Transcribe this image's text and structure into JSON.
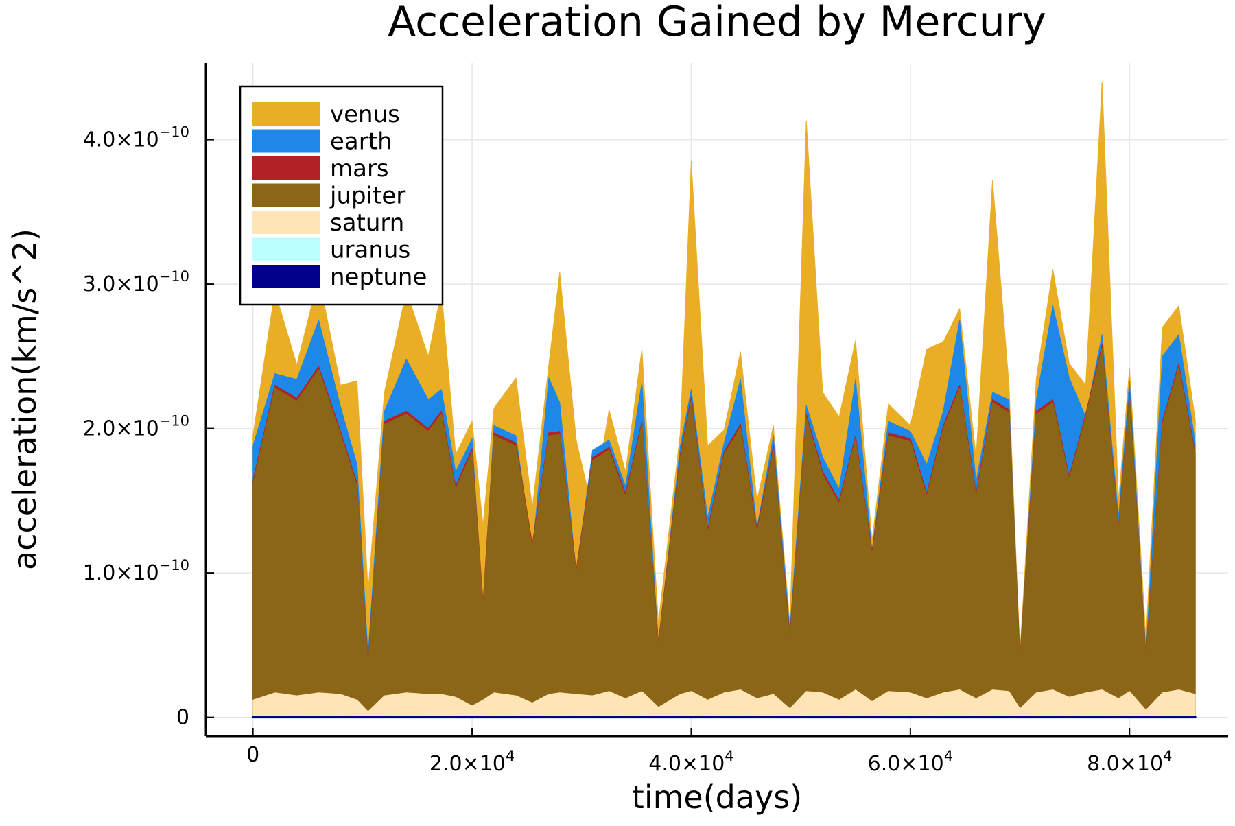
{
  "chart_data": {
    "type": "area",
    "title": "Acceleration Gained by Mercury",
    "xlabel": "time(days)",
    "ylabel": "acceleration(km/s^2)",
    "xlim": [
      -4300,
      89000
    ],
    "ylim": [
      -1.3e-11,
      4.53e-10
    ],
    "grid": true,
    "legend_position": "top-left",
    "x_ticks": [
      {
        "value": 0,
        "mantissa": "0",
        "exponent": ""
      },
      {
        "value": 20000,
        "mantissa": "2.0×10",
        "exponent": "4"
      },
      {
        "value": 40000,
        "mantissa": "4.0×10",
        "exponent": "4"
      },
      {
        "value": 60000,
        "mantissa": "6.0×10",
        "exponent": "4"
      },
      {
        "value": 80000,
        "mantissa": "8.0×10",
        "exponent": "4"
      }
    ],
    "y_ticks": [
      {
        "value": 0,
        "mantissa": "0",
        "exponent": ""
      },
      {
        "value": 1e-10,
        "mantissa": "1.0×10",
        "exponent": "−10"
      },
      {
        "value": 2e-10,
        "mantissa": "2.0×10",
        "exponent": "−10"
      },
      {
        "value": 3e-10,
        "mantissa": "3.0×10",
        "exponent": "−10"
      },
      {
        "value": 4e-10,
        "mantissa": "4.0×10",
        "exponent": "−10"
      }
    ],
    "x": [
      0,
      2000,
      4000,
      6000,
      8000,
      9500,
      10500,
      12000,
      14000,
      16000,
      17200,
      18500,
      20000,
      21000,
      22000,
      24000,
      25500,
      27000,
      28000,
      29500,
      31000,
      32500,
      34000,
      35500,
      37000,
      39000,
      40000,
      41500,
      43000,
      44500,
      46000,
      47500,
      49000,
      50500,
      52000,
      53500,
      55000,
      56500,
      58000,
      60000,
      61500,
      63000,
      64500,
      66000,
      67500,
      69000,
      70000,
      71500,
      73000,
      74500,
      76000,
      77500,
      79000,
      80000,
      81500,
      83000,
      84500,
      86000
    ],
    "series": [
      {
        "name": "venus",
        "color": "#E9AE26",
        "values": [
          1.95e-10,
          2.95e-10,
          2.44e-10,
          3.05e-10,
          2.3e-10,
          2.33e-10,
          8.7e-11,
          2.25e-10,
          2.95e-10,
          2.5e-10,
          2.95e-10,
          1.82e-10,
          2.05e-10,
          1.33e-10,
          2.14e-10,
          2.35e-10,
          1.45e-10,
          2.44e-10,
          3.08e-10,
          1.92e-10,
          1.43e-10,
          2.13e-10,
          1.7e-10,
          2.55e-10,
          6.5e-11,
          1.97e-10,
          3.85e-10,
          1.88e-10,
          1.99e-10,
          2.53e-10,
          1.5e-10,
          2.02e-10,
          6.5e-11,
          4.13e-10,
          2.25e-10,
          2.08e-10,
          2.61e-10,
          1.22e-10,
          2.17e-10,
          2.02e-10,
          2.55e-10,
          2.6e-10,
          2.83e-10,
          1.8e-10,
          3.72e-10,
          2.3e-10,
          4.5e-11,
          2.35e-10,
          3.1e-10,
          2.45e-10,
          2.3e-10,
          4.4e-10,
          1.5e-10,
          2.42e-10,
          5.5e-11,
          2.7e-10,
          2.85e-10,
          2.06e-10
        ]
      },
      {
        "name": "earth",
        "color": "#1E88E8",
        "values": [
          1.88e-10,
          2.38e-10,
          2.34e-10,
          2.75e-10,
          2.15e-10,
          1.75e-10,
          4.3e-11,
          2.12e-10,
          2.48e-10,
          2.2e-10,
          2.27e-10,
          1.7e-10,
          1.93e-10,
          7.2e-11,
          2.02e-10,
          1.95e-10,
          1.14e-10,
          2.35e-10,
          2.18e-10,
          1e-10,
          1.85e-10,
          1.92e-10,
          1.6e-10,
          2.32e-10,
          5e-11,
          1.88e-10,
          2.27e-10,
          1.38e-10,
          1.9e-10,
          2.34e-10,
          1.31e-10,
          1.95e-10,
          6e-11,
          2.16e-10,
          1.8e-10,
          1.58e-10,
          2.34e-10,
          1.15e-10,
          2.05e-10,
          1.98e-10,
          1.75e-10,
          2.12e-10,
          2.75e-10,
          1.63e-10,
          2.25e-10,
          2.2e-10,
          4e-11,
          2.2e-10,
          2.85e-10,
          2.35e-10,
          2.08e-10,
          2.65e-10,
          1.38e-10,
          2.33e-10,
          4.3e-11,
          2.5e-10,
          2.65e-10,
          1.9e-10
        ]
      },
      {
        "name": "mars",
        "color": "#B22222",
        "values": [
          1.64e-10,
          2.3e-10,
          2.21e-10,
          2.43e-10,
          1.98e-10,
          1.62e-10,
          3.7e-11,
          2.05e-10,
          2.12e-10,
          2e-10,
          2.12e-10,
          1.6e-10,
          1.86e-10,
          8e-11,
          1.97e-10,
          1.9e-10,
          1.2e-10,
          1.97e-10,
          1.98e-10,
          1.02e-10,
          1.8e-10,
          1.87e-10,
          1.55e-10,
          2.05e-10,
          5.2e-11,
          1.82e-10,
          2.22e-10,
          1.3e-10,
          1.84e-10,
          2.03e-10,
          1.3e-10,
          1.88e-10,
          5.6e-11,
          2.1e-10,
          1.7e-10,
          1.5e-10,
          1.95e-10,
          1.15e-10,
          1.97e-10,
          1.93e-10,
          1.55e-10,
          2.02e-10,
          2.3e-10,
          1.55e-10,
          2.2e-10,
          2.13e-10,
          4.2e-11,
          2.12e-10,
          2.2e-10,
          1.67e-10,
          2.1e-10,
          2.58e-10,
          1.32e-10,
          2.25e-10,
          4.3e-11,
          2.05e-10,
          2.45e-10,
          1.83e-10
        ]
      },
      {
        "name": "jupiter",
        "color": "#8B6617",
        "values": [
          1.62e-10,
          2.28e-10,
          2.19e-10,
          2.41e-10,
          1.96e-10,
          1.6e-10,
          3.5e-11,
          2.03e-10,
          2.1e-10,
          1.98e-10,
          2.1e-10,
          1.58e-10,
          1.84e-10,
          7.8e-11,
          1.95e-10,
          1.88e-10,
          1.18e-10,
          1.95e-10,
          1.96e-10,
          1e-10,
          1.78e-10,
          1.85e-10,
          1.53e-10,
          2.03e-10,
          5e-11,
          1.8e-10,
          2.2e-10,
          1.28e-10,
          1.82e-10,
          2.01e-10,
          1.28e-10,
          1.86e-10,
          5.4e-11,
          2.08e-10,
          1.68e-10,
          1.48e-10,
          1.93e-10,
          1.13e-10,
          1.95e-10,
          1.91e-10,
          1.53e-10,
          2e-10,
          2.28e-10,
          1.53e-10,
          2.18e-10,
          2.11e-10,
          4e-11,
          2.1e-10,
          2.18e-10,
          1.65e-10,
          2.08e-10,
          2.56e-10,
          1.3e-10,
          2.23e-10,
          4.1e-11,
          2.03e-10,
          2.43e-10,
          1.81e-10
        ]
      },
      {
        "name": "saturn",
        "color": "#FFE4B5",
        "values": [
          1.2e-11,
          1.7e-11,
          1.5e-11,
          1.7e-11,
          1.6e-11,
          1.2e-11,
          4e-12,
          1.5e-11,
          1.7e-11,
          1.6e-11,
          1.6e-11,
          1.4e-11,
          8e-12,
          1.2e-11,
          1.7e-11,
          1.5e-11,
          1e-11,
          1.6e-11,
          1.7e-11,
          1.6e-11,
          1.5e-11,
          1.8e-11,
          1.3e-11,
          1.8e-11,
          7e-12,
          1.6e-11,
          1.8e-11,
          1.2e-11,
          1.7e-11,
          1.9e-11,
          1.3e-11,
          1.6e-11,
          6e-12,
          1.8e-11,
          1.7e-11,
          1.2e-11,
          1.9e-11,
          1.1e-11,
          1.8e-11,
          1.7e-11,
          1.3e-11,
          1.7e-11,
          1.9e-11,
          1.3e-11,
          1.9e-11,
          1.8e-11,
          6e-12,
          1.7e-11,
          1.9e-11,
          1.4e-11,
          1.7e-11,
          1.9e-11,
          1.3e-11,
          1.8e-11,
          5e-12,
          1.7e-11,
          1.9e-11,
          1.6e-11
        ]
      },
      {
        "name": "uranus",
        "color": "#BBFFFF",
        "values": [
          1.2e-12,
          1.3e-12,
          1.2e-12,
          1.3e-12,
          1.2e-12,
          1e-12,
          4e-13,
          1.2e-12,
          1.3e-12,
          1.2e-12,
          1.2e-12,
          1.1e-12,
          8e-13,
          1e-12,
          1.3e-12,
          1.2e-12,
          9e-13,
          1.2e-12,
          1.3e-12,
          1.2e-12,
          1.2e-12,
          1.3e-12,
          1.1e-12,
          1.3e-12,
          7e-13,
          1.2e-12,
          1.3e-12,
          1e-12,
          1.3e-12,
          1.3e-12,
          1.1e-12,
          1.2e-12,
          6e-13,
          1.3e-12,
          1.3e-12,
          1e-12,
          1.3e-12,
          1e-12,
          1.3e-12,
          1.3e-12,
          1.1e-12,
          1.3e-12,
          1.3e-12,
          1.1e-12,
          1.3e-12,
          1.3e-12,
          6e-13,
          1.3e-12,
          1.3e-12,
          1.1e-12,
          1.3e-12,
          1.3e-12,
          1.1e-12,
          1.3e-12,
          5e-13,
          1.3e-12,
          1.3e-12,
          1.2e-12
        ]
      },
      {
        "name": "neptune",
        "color": "#00008B",
        "values": [
          4e-13,
          4e-13,
          4e-13,
          4e-13,
          4e-13,
          3e-13,
          1e-13,
          4e-13,
          4e-13,
          4e-13,
          4e-13,
          4e-13,
          3e-13,
          3e-13,
          4e-13,
          4e-13,
          3e-13,
          4e-13,
          4e-13,
          4e-13,
          4e-13,
          4e-13,
          4e-13,
          4e-13,
          2e-13,
          4e-13,
          4e-13,
          3e-13,
          4e-13,
          4e-13,
          4e-13,
          4e-13,
          2e-13,
          4e-13,
          4e-13,
          3e-13,
          4e-13,
          3e-13,
          4e-13,
          4e-13,
          4e-13,
          4e-13,
          4e-13,
          4e-13,
          4e-13,
          4e-13,
          2e-13,
          4e-13,
          4e-13,
          4e-13,
          4e-13,
          4e-13,
          4e-13,
          4e-13,
          2e-13,
          4e-13,
          4e-13,
          4e-13
        ]
      }
    ]
  }
}
